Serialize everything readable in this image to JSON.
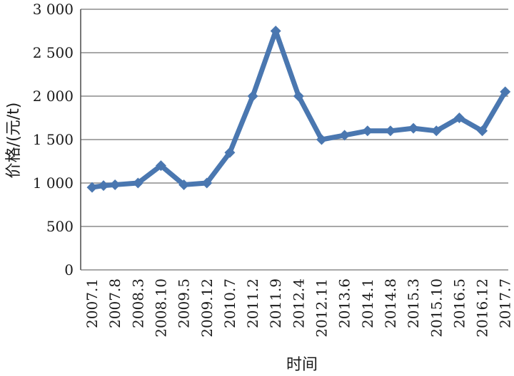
{
  "chart_data": {
    "type": "line",
    "title": "",
    "xlabel": "时间",
    "ylabel": "价格/(元/t)",
    "ylim": [
      0,
      3000
    ],
    "yticks": [
      {
        "value": 0,
        "label": "0"
      },
      {
        "value": 500,
        "label": "500"
      },
      {
        "value": 1000,
        "label": "1 000"
      },
      {
        "value": 1500,
        "label": "1 500"
      },
      {
        "value": 2000,
        "label": "2 000"
      },
      {
        "value": 2500,
        "label": "2 500"
      },
      {
        "value": 3000,
        "label": "3 000"
      }
    ],
    "grid": true,
    "legend": "none",
    "categories": [
      "2007.1",
      "2007.8",
      "2008.3",
      "2008.10",
      "2009.5",
      "2009.12",
      "2010.7",
      "2011.2",
      "2011.9",
      "2012.4",
      "2012.11",
      "2013.6",
      "2014.1",
      "2014.8",
      "2015.3",
      "2015.10",
      "2016.5",
      "2016.12",
      "2017.7"
    ],
    "points": [
      {
        "x": "2007.1",
        "y": 950
      },
      {
        "x": "2007.1",
        "y": 970
      },
      {
        "x": "2007.8",
        "y": 980
      },
      {
        "x": "2008.3",
        "y": 1000
      },
      {
        "x": "2008.10",
        "y": 1200
      },
      {
        "x": "2009.5",
        "y": 980
      },
      {
        "x": "2009.12",
        "y": 1000
      },
      {
        "x": "2010.7",
        "y": 1350
      },
      {
        "x": "2011.2",
        "y": 2000
      },
      {
        "x": "2011.9",
        "y": 2750
      },
      {
        "x": "2012.4",
        "y": 2000
      },
      {
        "x": "2012.11",
        "y": 1500
      },
      {
        "x": "2013.6",
        "y": 1550
      },
      {
        "x": "2014.1",
        "y": 1600
      },
      {
        "x": "2014.8",
        "y": 1600
      },
      {
        "x": "2015.3",
        "y": 1630
      },
      {
        "x": "2015.10",
        "y": 1600
      },
      {
        "x": "2016.5",
        "y": 1750
      },
      {
        "x": "2016.12",
        "y": 1600
      },
      {
        "x": "2017.7",
        "y": 2050
      }
    ],
    "series_color": "#4a77b0"
  }
}
